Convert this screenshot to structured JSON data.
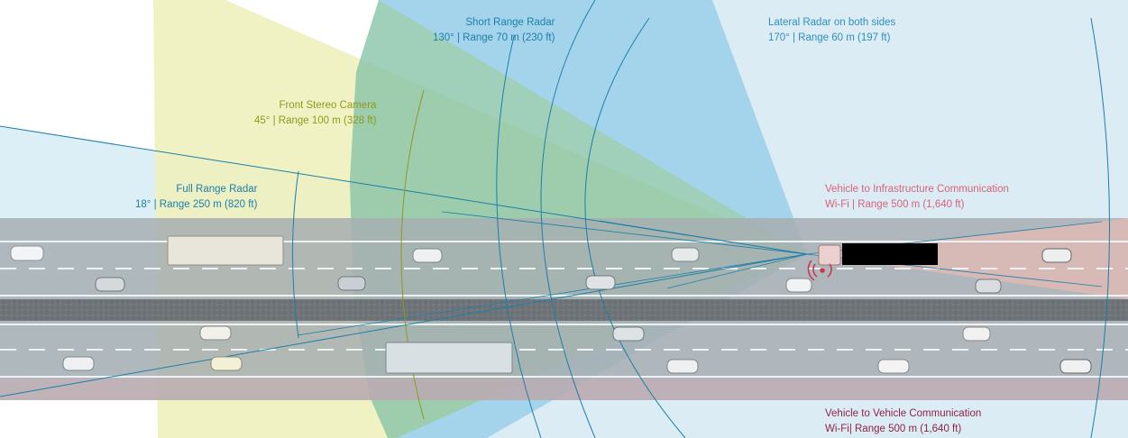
{
  "labels": {
    "full_range_radar": {
      "title": "Full Range Radar",
      "spec": "18° | Range 250 m (820 ft)"
    },
    "front_stereo_camera": {
      "title": "Front Stereo Camera",
      "spec": "45° | Range 100 m (328 ft)"
    },
    "short_range_radar": {
      "title": "Short Range Radar",
      "spec": "130° | Range 70 m (230 ft)"
    },
    "lateral_radar": {
      "title": "Lateral Radar on both sides",
      "spec": "170° | Range 60 m (197 ft)"
    },
    "v2i": {
      "title": "Vehicle to Infrastructure Communication",
      "spec": "Wi-Fi | Range 500 m (1,640 ft)"
    },
    "v2v": {
      "title": "Vehicle to Vehicle Communication",
      "spec": "Wi-Fi| Range 500 m (1,640 ft)"
    }
  },
  "colors": {
    "radar_blue": "#1d7fa9",
    "camera_olive": "#8e9a1c",
    "v2i_pink": "#d8627a",
    "v2v_maroon": "#8f2246",
    "road": "#9aa3a8",
    "median": "#6e7377",
    "truck_highlight": "#000000"
  }
}
